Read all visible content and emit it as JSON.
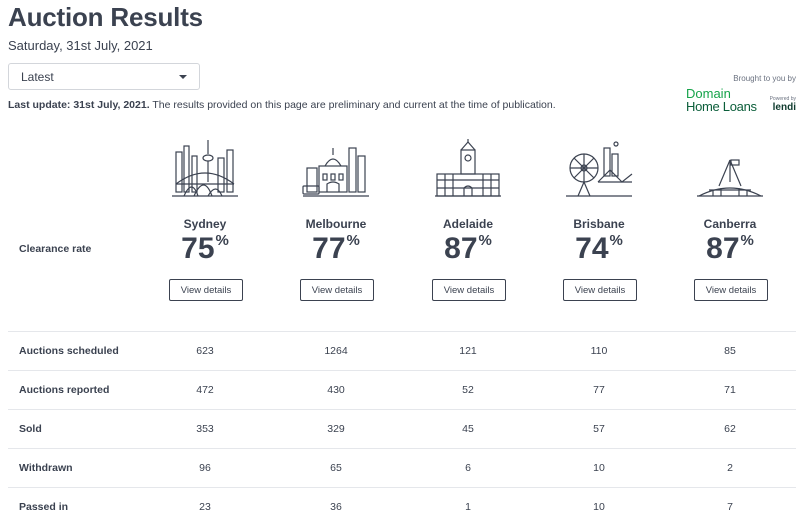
{
  "page": {
    "title": "Auction Results",
    "date": "Saturday, 31st July, 2021"
  },
  "filter": {
    "selected": "Latest"
  },
  "sponsor": {
    "brought_by": "Brought to you by",
    "domain": "Domain",
    "home_loans": "Home Loans",
    "powered_by": "Powered by",
    "lendi": "lendi"
  },
  "update": {
    "bold": "Last update: 31st July, 2021.",
    "text": " The results provided on this page are preliminary and current at the time of publication."
  },
  "labels": {
    "clearance": "Clearance rate",
    "scheduled": "Auctions scheduled",
    "reported": "Auctions reported",
    "sold": "Sold",
    "withdrawn": "Withdrawn",
    "passed": "Passed in"
  },
  "percent_sign": "%",
  "cities": [
    {
      "name": "Sydney",
      "rate": "75",
      "button": "View details",
      "scheduled": "623",
      "reported": "472",
      "sold": "353",
      "withdrawn": "96",
      "passed": "23"
    },
    {
      "name": "Melbourne",
      "rate": "77",
      "button": "View details",
      "scheduled": "1264",
      "reported": "430",
      "sold": "329",
      "withdrawn": "65",
      "passed": "36"
    },
    {
      "name": "Adelaide",
      "rate": "87",
      "button": "View details",
      "scheduled": "121",
      "reported": "52",
      "sold": "45",
      "withdrawn": "6",
      "passed": "1"
    },
    {
      "name": "Brisbane",
      "rate": "74",
      "button": "View details",
      "scheduled": "110",
      "reported": "77",
      "sold": "57",
      "withdrawn": "10",
      "passed": "10"
    },
    {
      "name": "Canberra",
      "rate": "87",
      "button": "View details",
      "scheduled": "85",
      "reported": "71",
      "sold": "62",
      "withdrawn": "2",
      "passed": "7"
    }
  ],
  "icons": {
    "c0": "sydney-skyline-icon",
    "c1": "melbourne-skyline-icon",
    "c2": "adelaide-town-hall-icon",
    "c3": "brisbane-skyline-icon",
    "c4": "canberra-parliament-icon"
  }
}
